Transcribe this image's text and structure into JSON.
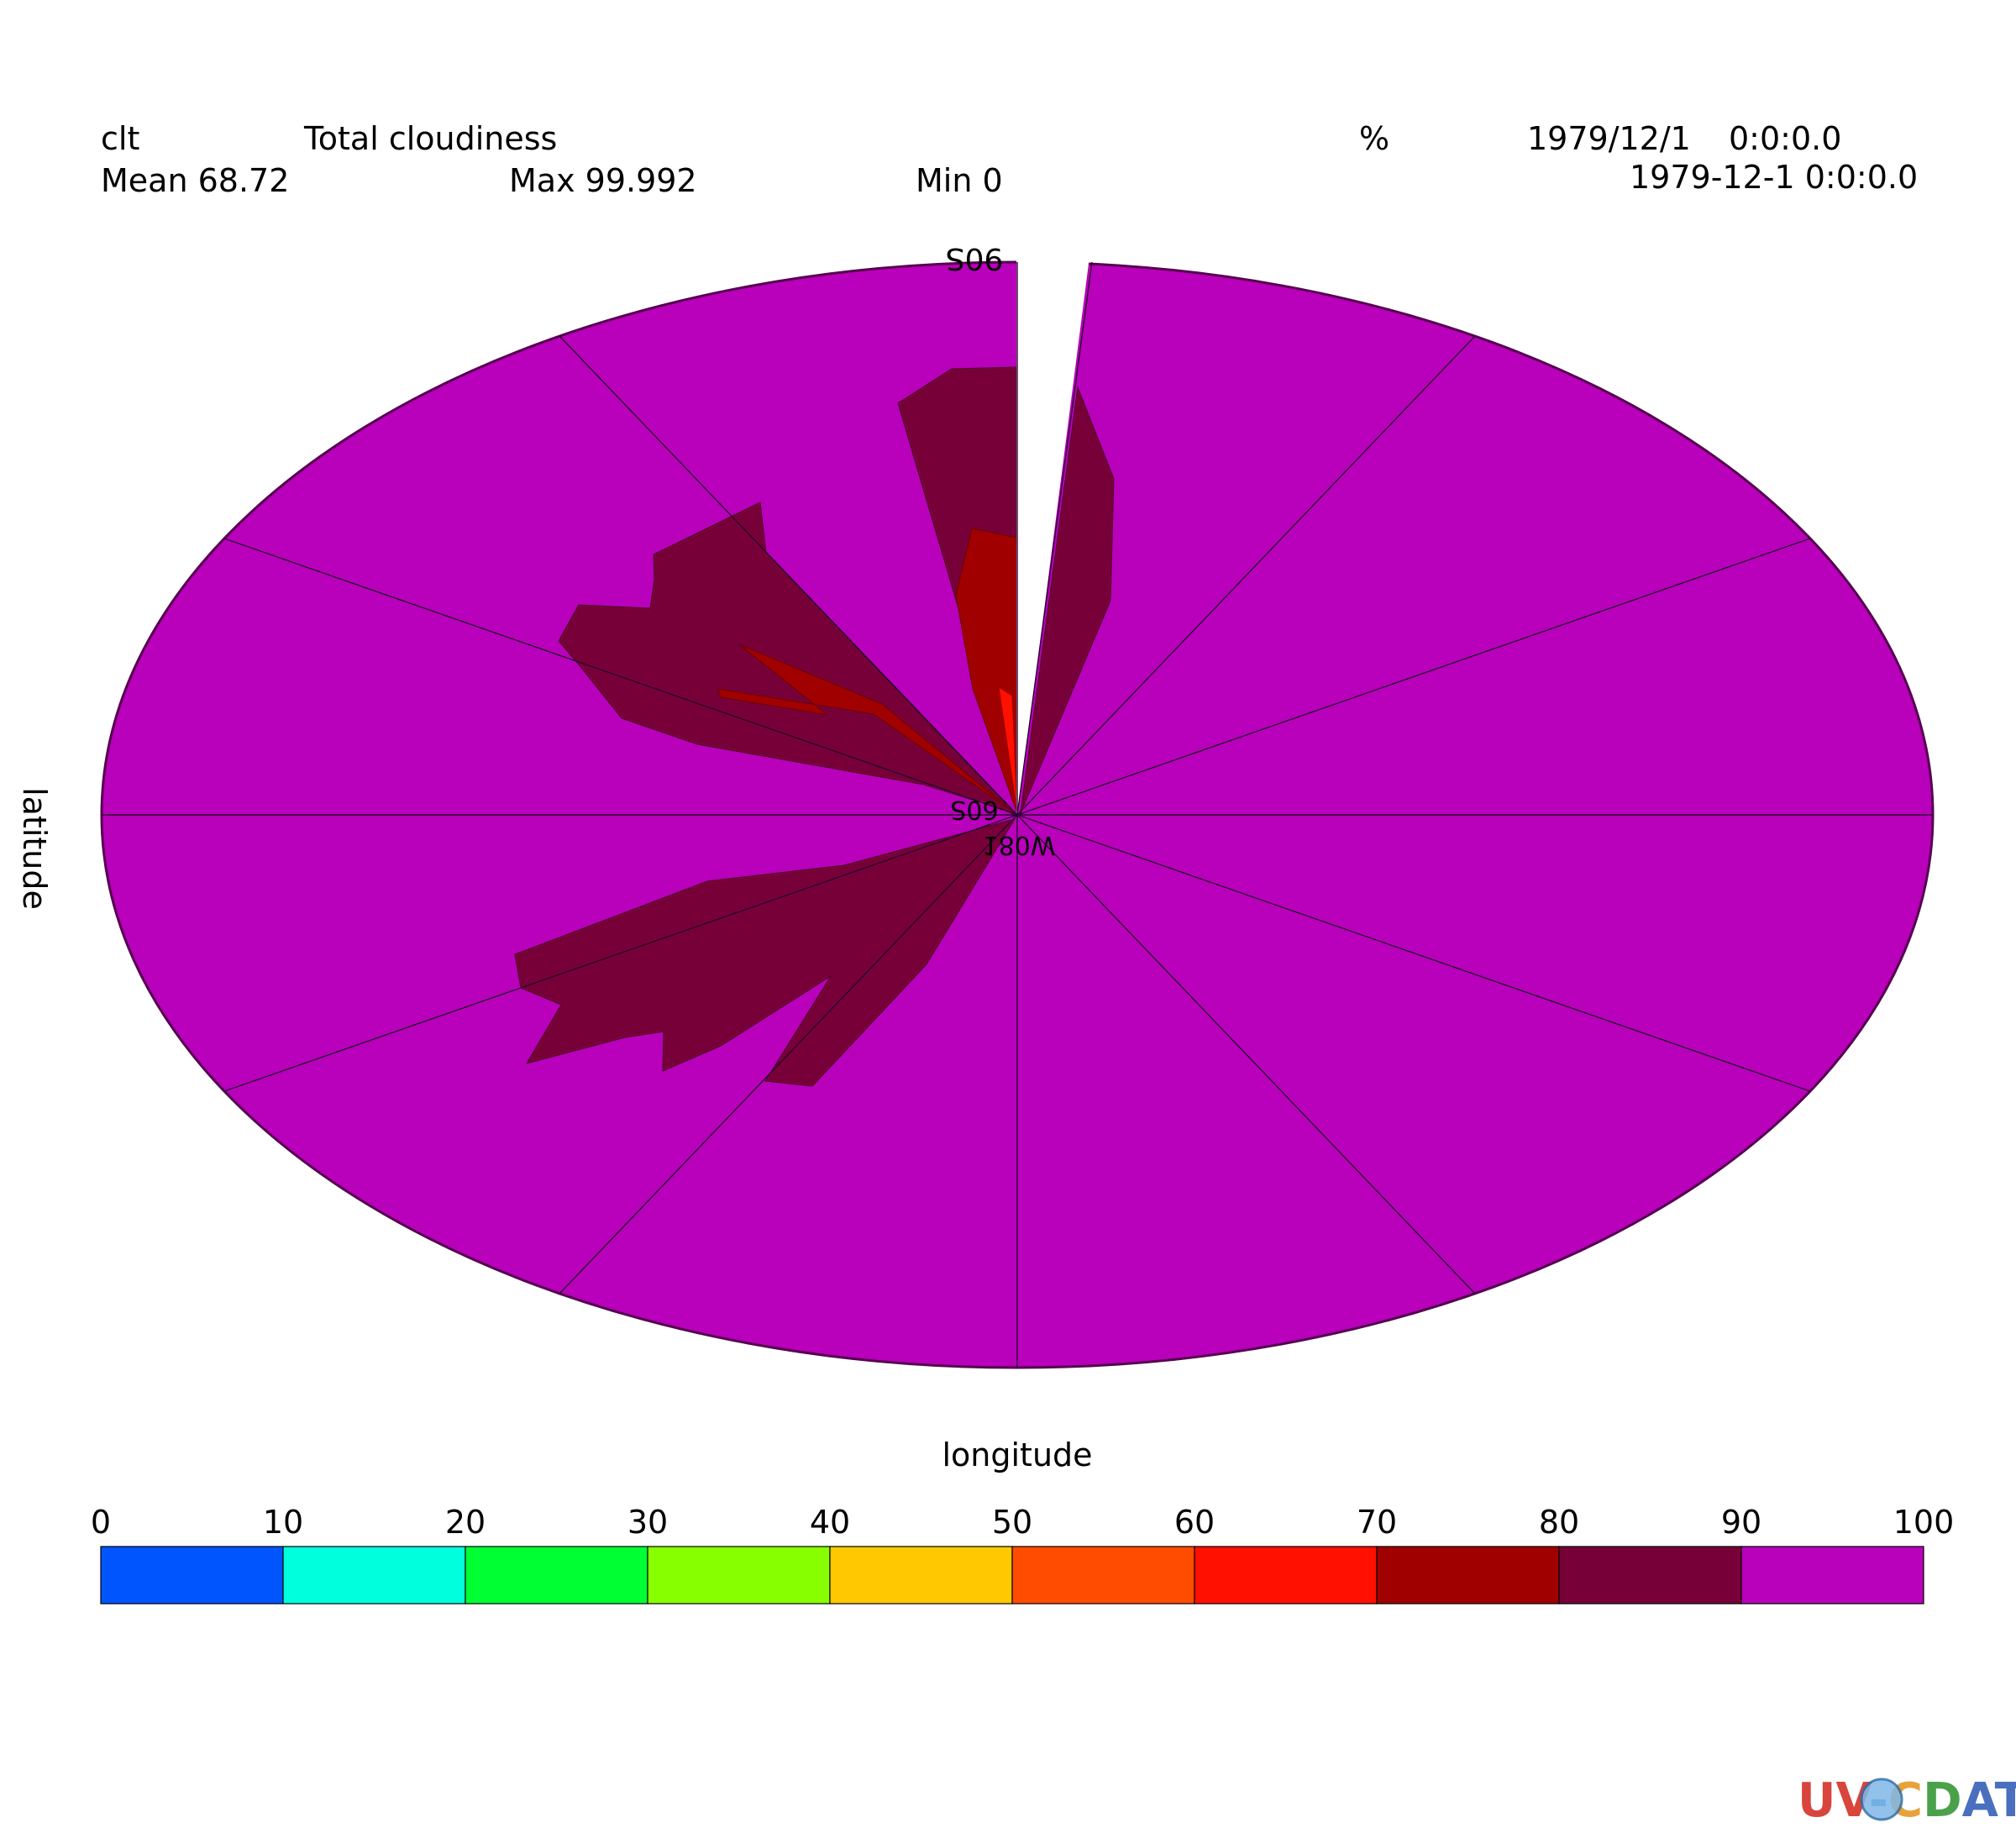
{
  "header": {
    "variable": "clt",
    "long_name": "Total cloudiness",
    "units": "%",
    "date1": "1979/12/1",
    "time1": "0:0:0.0",
    "date2": "1979-12-1 0:0:0.0",
    "mean": "Mean 68.72",
    "max": "Max 99.992",
    "min": "Min 0"
  },
  "pole_label": "90S",
  "center_label_top": "60S",
  "center_label_bottom": "180W",
  "x_axis_label": "longitude",
  "y_axis_label": "latitude",
  "logo_text": "UV-CDAT",
  "colorbar": {
    "ticks": [
      "0",
      "10",
      "20",
      "30",
      "40",
      "50",
      "60",
      "70",
      "80",
      "90",
      "100"
    ],
    "colors": [
      "#0055ff",
      "#00ffdd",
      "#00ff33",
      "#88ff00",
      "#ffc800",
      "#ff4c00",
      "#ff1000",
      "#a00000",
      "#780038",
      "#b900bb"
    ]
  },
  "chart_data": {
    "type": "polar-fill",
    "variable": "clt",
    "units": "%",
    "projection": "polar (south pole view)",
    "levels": [
      0,
      10,
      20,
      30,
      40,
      50,
      60,
      70,
      80,
      90,
      100
    ],
    "field_summary": {
      "mean": 68.72,
      "max": 99.992,
      "min": 0
    },
    "dominant_band": [
      90,
      100
    ],
    "secondary_bands": [
      [
        80,
        90
      ],
      [
        70,
        80
      ],
      [
        60,
        70
      ]
    ],
    "meridian_count": 12
  }
}
